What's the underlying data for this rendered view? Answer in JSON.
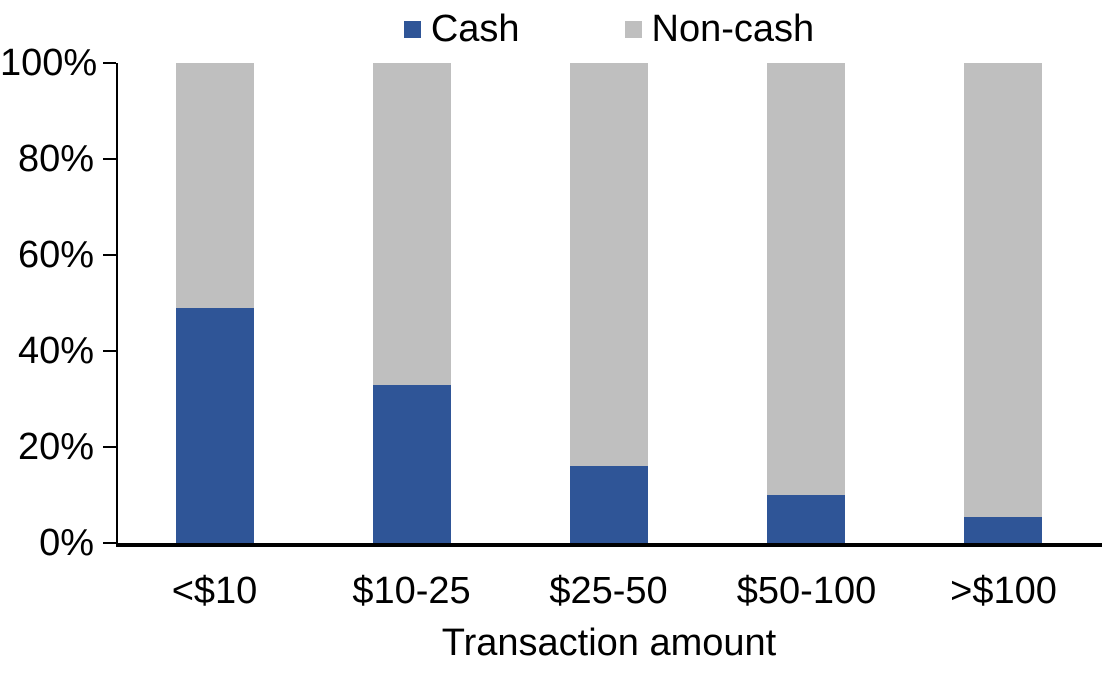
{
  "chart_data": {
    "type": "bar",
    "stacked": true,
    "stack_mode": "percent",
    "title": "",
    "xlabel": "Transaction amount",
    "ylabel": "",
    "categories": [
      "<$10",
      "$10-25",
      "$25-50",
      "$50-100",
      ">$100"
    ],
    "series": [
      {
        "name": "Cash",
        "color": "#2F5597",
        "values": [
          49,
          33,
          16,
          10,
          5.5
        ]
      },
      {
        "name": "Non-cash",
        "color": "#BFBFBF",
        "values": [
          51,
          67,
          84,
          90,
          94.5
        ]
      }
    ],
    "ylim": [
      0,
      100
    ],
    "y_tick_labels": [
      "0%",
      "20%",
      "40%",
      "60%",
      "80%",
      "100%"
    ],
    "grid": false,
    "legend_position": "top-center",
    "axis_color": "#000000",
    "background_color": "#FFFFFF"
  }
}
